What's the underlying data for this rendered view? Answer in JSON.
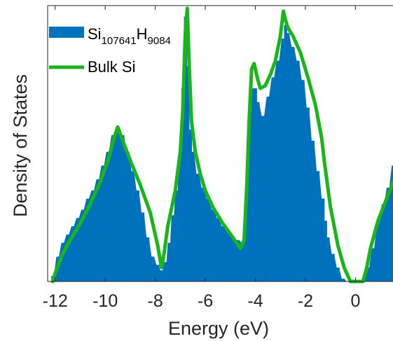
{
  "chart_data": {
    "type": "area",
    "xlabel": "Energy (eV)",
    "ylabel": "Density of States",
    "xlim": [
      -12.3,
      1.5
    ],
    "ylim": [
      0,
      1.0
    ],
    "xticks": [
      -12,
      -10,
      -8,
      -6,
      -4,
      -2,
      0
    ],
    "xtick_labels": [
      "-12",
      "-10",
      "-8",
      "-6",
      "-4",
      "-2",
      "0"
    ],
    "yticks_visible": false,
    "grid": false,
    "legend_position": "top-left",
    "series": [
      {
        "name": "Si107641H9084",
        "legend_text": {
          "base": "Si",
          "sub1": "107641",
          "mid": "H",
          "sub2": "9084"
        },
        "kind": "histogram",
        "color": "#0072BD",
        "bin_width": 0.1,
        "x": [
          -12.1,
          -11.9,
          -11.7,
          -11.5,
          -11.3,
          -11.1,
          -10.9,
          -10.7,
          -10.5,
          -10.3,
          -10.1,
          -9.9,
          -9.7,
          -9.5,
          -9.3,
          -9.1,
          -8.9,
          -8.7,
          -8.5,
          -8.3,
          -8.1,
          -7.9,
          -7.75,
          -7.6,
          -7.45,
          -7.3,
          -7.15,
          -7.0,
          -6.9,
          -6.8,
          -6.7,
          -6.6,
          -6.5,
          -6.3,
          -6.1,
          -5.9,
          -5.7,
          -5.5,
          -5.3,
          -5.1,
          -4.9,
          -4.7,
          -4.5,
          -4.4,
          -4.3,
          -4.2,
          -4.1,
          -4.0,
          -3.9,
          -3.7,
          -3.5,
          -3.3,
          -3.1,
          -2.9,
          -2.8,
          -2.7,
          -2.5,
          -2.3,
          -2.1,
          -1.9,
          -1.7,
          -1.5,
          -1.3,
          -1.2,
          -1.1,
          -0.9,
          -0.7,
          -0.5,
          -0.3,
          -0.1,
          0.1,
          0.3,
          0.5,
          0.7,
          0.9,
          1.1,
          1.3,
          1.5
        ],
        "y": [
          0.02,
          0.09,
          0.14,
          0.17,
          0.2,
          0.23,
          0.26,
          0.3,
          0.33,
          0.37,
          0.42,
          0.47,
          0.53,
          0.55,
          0.53,
          0.47,
          0.4,
          0.33,
          0.25,
          0.16,
          0.09,
          0.06,
          0.04,
          0.07,
          0.14,
          0.24,
          0.33,
          0.48,
          0.7,
          0.96,
          0.78,
          0.55,
          0.47,
          0.39,
          0.34,
          0.3,
          0.26,
          0.23,
          0.2,
          0.18,
          0.16,
          0.15,
          0.14,
          0.28,
          0.46,
          0.62,
          0.7,
          0.7,
          0.65,
          0.6,
          0.67,
          0.74,
          0.8,
          0.88,
          0.93,
          0.9,
          0.85,
          0.8,
          0.73,
          0.63,
          0.51,
          0.4,
          0.3,
          0.22,
          0.16,
          0.1,
          0.05,
          0.01,
          0.0,
          0.0,
          0.0,
          0.0,
          0.05,
          0.12,
          0.21,
          0.28,
          0.34,
          0.42
        ]
      },
      {
        "name": "Bulk Si",
        "kind": "line",
        "color": "#1AB51A",
        "x": [
          -12.1,
          -12.0,
          -11.7,
          -11.4,
          -11.0,
          -10.6,
          -10.2,
          -9.85,
          -9.65,
          -9.5,
          -9.3,
          -9.0,
          -8.6,
          -8.2,
          -7.9,
          -7.75,
          -7.65,
          -7.5,
          -7.2,
          -7.0,
          -6.9,
          -6.8,
          -6.72,
          -6.65,
          -6.55,
          -6.4,
          -6.2,
          -6.0,
          -5.7,
          -5.3,
          -4.9,
          -4.6,
          -4.45,
          -4.35,
          -4.25,
          -4.15,
          -4.05,
          -3.9,
          -3.8,
          -3.6,
          -3.4,
          -3.2,
          -3.0,
          -2.88,
          -2.8,
          -2.7,
          -2.5,
          -2.2,
          -1.9,
          -1.6,
          -1.35,
          -1.25,
          -1.0,
          -0.7,
          -0.45,
          -0.2,
          0.0,
          0.1,
          0.3,
          0.45,
          0.6,
          0.9,
          1.2,
          1.5
        ],
        "y": [
          0.0,
          0.03,
          0.1,
          0.15,
          0.21,
          0.28,
          0.36,
          0.45,
          0.52,
          0.56,
          0.51,
          0.44,
          0.35,
          0.25,
          0.13,
          0.05,
          0.1,
          0.2,
          0.33,
          0.47,
          0.62,
          0.9,
          0.99,
          0.8,
          0.58,
          0.47,
          0.39,
          0.33,
          0.27,
          0.21,
          0.16,
          0.12,
          0.15,
          0.33,
          0.58,
          0.77,
          0.79,
          0.73,
          0.7,
          0.71,
          0.75,
          0.8,
          0.89,
          0.98,
          0.95,
          0.92,
          0.89,
          0.83,
          0.74,
          0.64,
          0.52,
          0.44,
          0.27,
          0.13,
          0.05,
          0.0,
          0.0,
          0.0,
          0.0,
          0.05,
          0.12,
          0.22,
          0.29,
          0.36
        ]
      }
    ]
  }
}
